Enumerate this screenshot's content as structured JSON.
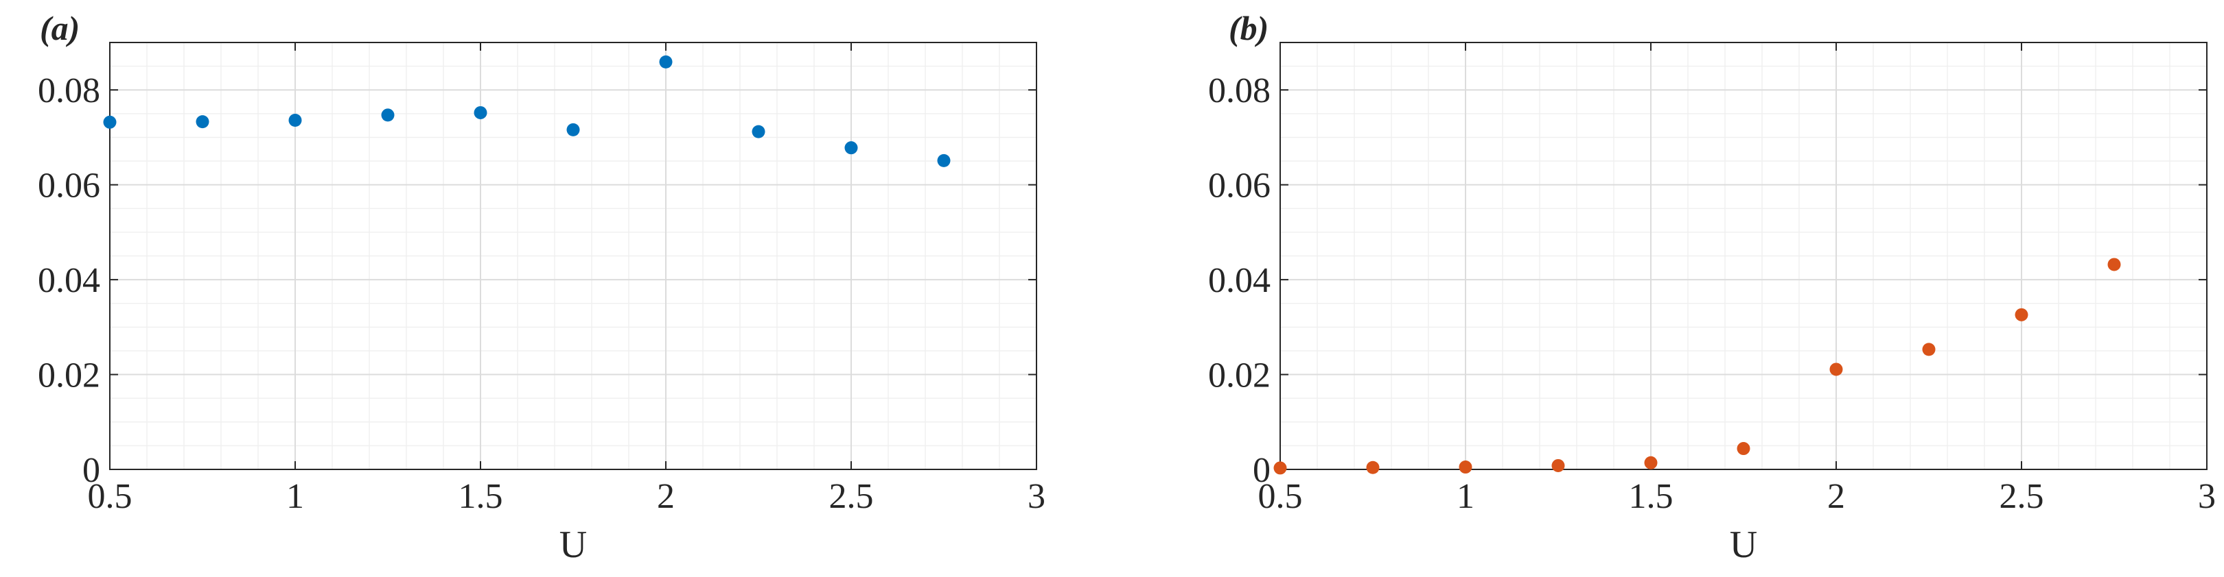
{
  "chart_data": [
    {
      "type": "scatter",
      "panel_label": "(a)",
      "xlabel": "U",
      "ylabel": "",
      "title": "",
      "xlim": [
        0.5,
        3
      ],
      "ylim": [
        0,
        0.09
      ],
      "xticks": [
        0.5,
        1,
        1.5,
        2,
        2.5,
        3
      ],
      "xtick_labels": [
        "0.5",
        "1",
        "1.5",
        "2",
        "2.5",
        "3"
      ],
      "yticks": [
        0,
        0.02,
        0.04,
        0.06,
        0.08
      ],
      "ytick_labels": [
        "0",
        "0.02",
        "0.04",
        "0.06",
        "0.08"
      ],
      "grid": true,
      "minor_grid": true,
      "color": "#0072BD",
      "series": [
        {
          "x": [
            0.5,
            0.75,
            1,
            1.25,
            1.5,
            1.75,
            2,
            2.25,
            2.5,
            2.75
          ],
          "y": [
            0.0732,
            0.0733,
            0.0736,
            0.0747,
            0.0752,
            0.0716,
            0.0859,
            0.0712,
            0.0678,
            0.0651
          ]
        }
      ]
    },
    {
      "type": "scatter",
      "panel_label": "(b)",
      "xlabel": "U",
      "ylabel": "",
      "title": "",
      "xlim": [
        0.5,
        3
      ],
      "ylim": [
        0,
        0.09
      ],
      "xticks": [
        0.5,
        1,
        1.5,
        2,
        2.5,
        3
      ],
      "xtick_labels": [
        "0.5",
        "1",
        "1.5",
        "2",
        "2.5",
        "3"
      ],
      "yticks": [
        0,
        0.02,
        0.04,
        0.06,
        0.08
      ],
      "ytick_labels": [
        "0",
        "0.02",
        "0.04",
        "0.06",
        "0.08"
      ],
      "grid": true,
      "minor_grid": true,
      "color": "#D95319",
      "series": [
        {
          "x": [
            0.5,
            0.75,
            1,
            1.25,
            1.5,
            1.75,
            2,
            2.25,
            2.5,
            2.75
          ],
          "y": [
            0.0003,
            0.0004,
            0.0005,
            0.0008,
            0.0014,
            0.0044,
            0.0211,
            0.0253,
            0.0326,
            0.0432
          ]
        }
      ]
    }
  ]
}
